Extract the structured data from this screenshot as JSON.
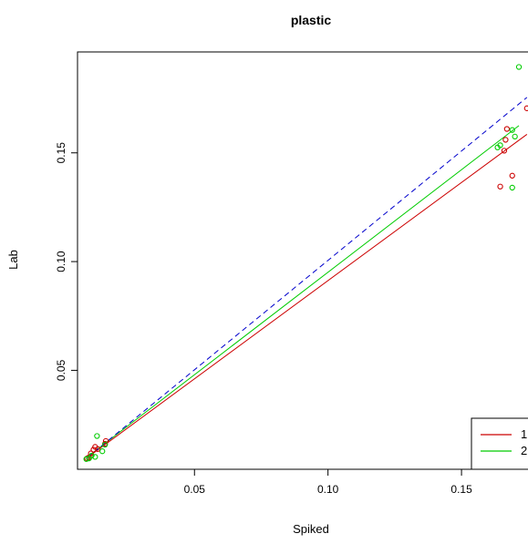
{
  "chart_data": {
    "type": "scatter",
    "title": "plastic",
    "xlabel": "Spiked",
    "ylabel": "Lab",
    "xlim": [
      0.0062,
      0.1749
    ],
    "ylim": [
      0.0045,
      0.1964
    ],
    "xticks": [
      0.05,
      0.1,
      0.15
    ],
    "xtick_labels": [
      "0.05",
      "0.10",
      "0.15"
    ],
    "yticks": [
      0.05,
      0.1,
      0.15
    ],
    "ytick_labels": [
      "0.05",
      "0.10",
      "0.15"
    ],
    "grid": false,
    "legend_position": "bottom-right",
    "series": [
      {
        "name": "1",
        "color": "#cc0000",
        "marker": "circle",
        "points": [
          [
            0.0098,
            0.0095
          ],
          [
            0.0105,
            0.01
          ],
          [
            0.0112,
            0.0118
          ],
          [
            0.0122,
            0.0135
          ],
          [
            0.0128,
            0.0148
          ],
          [
            0.0138,
            0.0138
          ],
          [
            0.0165,
            0.0162
          ],
          [
            0.0168,
            0.0175
          ],
          [
            0.1645,
            0.1345
          ],
          [
            0.166,
            0.151
          ],
          [
            0.1665,
            0.156
          ],
          [
            0.167,
            0.161
          ],
          [
            0.169,
            0.1395
          ],
          [
            0.1745,
            0.1705
          ]
        ]
      },
      {
        "name": "2",
        "color": "#00cc00",
        "marker": "circle",
        "points": [
          [
            0.0095,
            0.0092
          ],
          [
            0.0105,
            0.0095
          ],
          [
            0.0115,
            0.0108
          ],
          [
            0.0128,
            0.0102
          ],
          [
            0.0135,
            0.0198
          ],
          [
            0.0155,
            0.0128
          ],
          [
            0.0165,
            0.0158
          ],
          [
            0.1635,
            0.1525
          ],
          [
            0.1645,
            0.1535
          ],
          [
            0.169,
            0.1605
          ],
          [
            0.169,
            0.134
          ],
          [
            0.17,
            0.1575
          ],
          [
            0.1715,
            0.1895
          ]
        ]
      }
    ],
    "fit_lines": [
      {
        "series": "1",
        "color": "#cc0000",
        "style": "solid",
        "x": [
          0.0098,
          0.1745
        ],
        "y": [
          0.0098,
          0.1585
        ]
      },
      {
        "series": "2",
        "color": "#00cc00",
        "style": "solid",
        "x": [
          0.0095,
          0.1715
        ],
        "y": [
          0.0098,
          0.1625
        ]
      },
      {
        "series": "reference",
        "color": "#0000cc",
        "style": "dashed",
        "x": [
          0.0098,
          0.1745
        ],
        "y": [
          0.0098,
          0.1755
        ]
      }
    ],
    "legend": [
      {
        "label": "1",
        "color": "#cc0000"
      },
      {
        "label": "2",
        "color": "#00cc00"
      }
    ]
  }
}
